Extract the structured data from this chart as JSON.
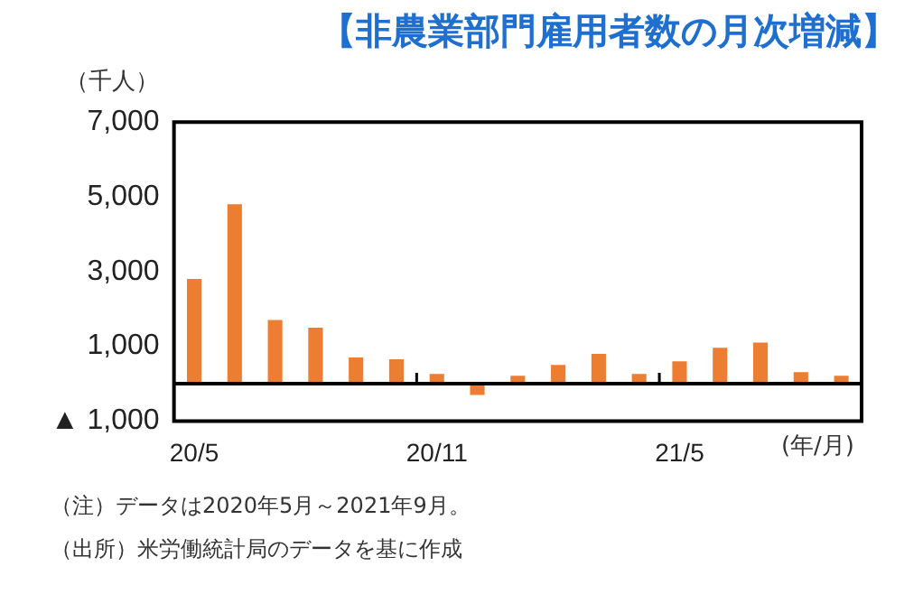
{
  "chart_data": {
    "type": "bar",
    "title": "【非農業部門雇用者数の月次増減】",
    "ylabel": "（千人）",
    "xlabel": "(年/月)",
    "categories": [
      "20/5",
      null,
      null,
      null,
      null,
      null,
      "20/11",
      null,
      null,
      null,
      null,
      null,
      "21/5",
      null,
      null,
      null,
      null
    ],
    "values": [
      2800,
      4800,
      1700,
      1500,
      700,
      650,
      260,
      -300,
      210,
      500,
      800,
      260,
      600,
      960,
      1100,
      310,
      210
    ],
    "color": "#ed7d31",
    "ylim": [
      -1000,
      7000
    ],
    "yticks": [
      {
        "value": -1000,
        "label": "▲ 1,000"
      },
      {
        "value": 1000,
        "label": "1,000"
      },
      {
        "value": 3000,
        "label": "3,000"
      },
      {
        "value": 5000,
        "label": "5,000"
      },
      {
        "value": 7000,
        "label": "7,000"
      }
    ],
    "ref_lines": [
      {
        "axis": "y",
        "value": 0,
        "color": "#000000"
      }
    ],
    "grid": false,
    "legend": false,
    "annotations": [
      "（注）データは2020年5月～2021年9月。",
      "（出所）米労働統計局のデータを基に作成"
    ]
  }
}
